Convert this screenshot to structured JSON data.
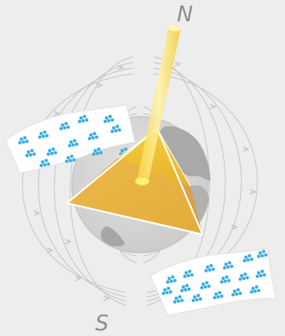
{
  "labels": {
    "north": "N",
    "south": "S"
  },
  "colors": {
    "background": "#ededed",
    "field_lines": "#c7c7c7",
    "earth": "#d6d6d6",
    "land": "#a7a7a7",
    "pyramid_base": "#e0ad4a",
    "pyramid_face": "#f3c12f",
    "beam": "#fbe77a",
    "particles": "#3aaee0"
  },
  "icons": {
    "particle": "particle-cluster-icon"
  }
}
